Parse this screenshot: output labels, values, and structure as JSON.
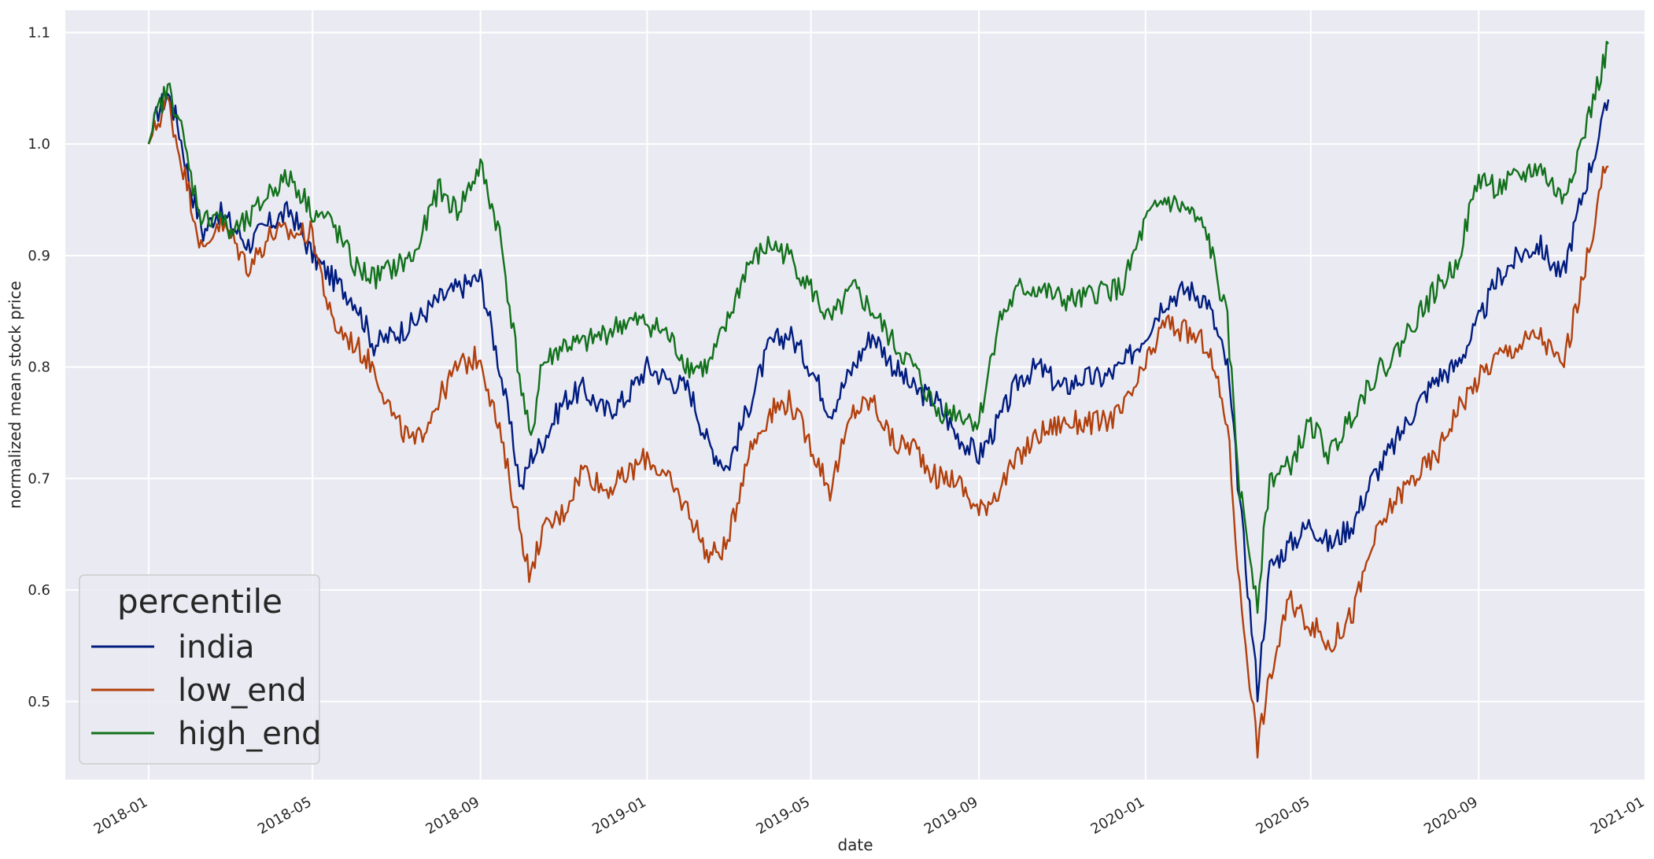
{
  "chart_data": {
    "type": "line",
    "xlabel": "date",
    "ylabel": "normalized mean stock price",
    "xlim": [
      "2017-11-01",
      "2021-01-01"
    ],
    "ylim": [
      0.43,
      1.12
    ],
    "x_ticks": [
      "2018-01",
      "2018-05",
      "2018-09",
      "2019-01",
      "2019-05",
      "2019-09",
      "2020-01",
      "2020-05",
      "2020-09",
      "2021-01"
    ],
    "y_ticks": [
      0.5,
      0.6,
      0.7,
      0.8,
      0.9,
      1.0,
      1.1
    ],
    "y_tick_labels": [
      "0.5",
      "0.6",
      "0.7",
      "0.8",
      "0.9",
      "1.0",
      "1.1"
    ],
    "grid": true,
    "background": "#eaeaf2",
    "legend": {
      "title": "percentile",
      "position": "lower-left"
    },
    "x": [
      "2018-01-01",
      "2018-01-08",
      "2018-01-15",
      "2018-01-22",
      "2018-02-01",
      "2018-02-10",
      "2018-02-20",
      "2018-03-01",
      "2018-03-15",
      "2018-04-01",
      "2018-04-15",
      "2018-05-01",
      "2018-05-15",
      "2018-06-01",
      "2018-06-15",
      "2018-07-01",
      "2018-07-15",
      "2018-08-01",
      "2018-08-15",
      "2018-09-01",
      "2018-09-15",
      "2018-10-01",
      "2018-10-08",
      "2018-10-15",
      "2018-11-01",
      "2018-11-15",
      "2018-12-01",
      "2018-12-15",
      "2019-01-01",
      "2019-01-15",
      "2019-02-01",
      "2019-02-15",
      "2019-03-01",
      "2019-03-15",
      "2019-04-01",
      "2019-04-15",
      "2019-05-01",
      "2019-05-15",
      "2019-06-01",
      "2019-06-15",
      "2019-07-01",
      "2019-07-15",
      "2019-08-01",
      "2019-08-15",
      "2019-09-01",
      "2019-09-15",
      "2019-10-01",
      "2019-10-15",
      "2019-11-01",
      "2019-11-15",
      "2019-12-01",
      "2019-12-15",
      "2020-01-01",
      "2020-01-15",
      "2020-02-01",
      "2020-02-15",
      "2020-03-01",
      "2020-03-10",
      "2020-03-23",
      "2020-04-01",
      "2020-04-15",
      "2020-05-01",
      "2020-05-15",
      "2020-06-01",
      "2020-06-15",
      "2020-07-01",
      "2020-07-15",
      "2020-08-01",
      "2020-08-15",
      "2020-09-01",
      "2020-09-15",
      "2020-10-01",
      "2020-10-15",
      "2020-11-01",
      "2020-11-15",
      "2020-12-01",
      "2020-12-05"
    ],
    "series": [
      {
        "name": "india",
        "color": "#001c7f",
        "values": [
          1.0,
          1.03,
          1.045,
          1.02,
          0.96,
          0.92,
          0.94,
          0.93,
          0.91,
          0.93,
          0.94,
          0.9,
          0.88,
          0.86,
          0.82,
          0.83,
          0.84,
          0.86,
          0.87,
          0.88,
          0.8,
          0.69,
          0.72,
          0.73,
          0.77,
          0.78,
          0.76,
          0.77,
          0.8,
          0.79,
          0.78,
          0.73,
          0.71,
          0.76,
          0.82,
          0.83,
          0.8,
          0.76,
          0.8,
          0.83,
          0.8,
          0.78,
          0.77,
          0.74,
          0.72,
          0.75,
          0.79,
          0.8,
          0.78,
          0.79,
          0.79,
          0.8,
          0.83,
          0.86,
          0.87,
          0.86,
          0.8,
          0.68,
          0.51,
          0.62,
          0.64,
          0.66,
          0.64,
          0.66,
          0.7,
          0.73,
          0.76,
          0.79,
          0.8,
          0.84,
          0.88,
          0.9,
          0.91,
          0.88,
          0.95,
          1.02,
          1.04
        ]
      },
      {
        "name": "low_end",
        "color": "#b1400d",
        "values": [
          1.0,
          1.02,
          1.04,
          1.0,
          0.95,
          0.9,
          0.93,
          0.92,
          0.89,
          0.92,
          0.92,
          0.92,
          0.84,
          0.82,
          0.8,
          0.75,
          0.73,
          0.77,
          0.8,
          0.81,
          0.74,
          0.65,
          0.61,
          0.65,
          0.67,
          0.71,
          0.69,
          0.7,
          0.72,
          0.7,
          0.67,
          0.63,
          0.64,
          0.72,
          0.76,
          0.77,
          0.73,
          0.69,
          0.76,
          0.77,
          0.73,
          0.73,
          0.7,
          0.7,
          0.67,
          0.69,
          0.72,
          0.74,
          0.75,
          0.75,
          0.75,
          0.76,
          0.8,
          0.84,
          0.83,
          0.82,
          0.75,
          0.6,
          0.46,
          0.52,
          0.59,
          0.57,
          0.55,
          0.58,
          0.64,
          0.68,
          0.7,
          0.72,
          0.76,
          0.79,
          0.81,
          0.82,
          0.83,
          0.8,
          0.87,
          0.97,
          0.98
        ]
      },
      {
        "name": "high_end",
        "color": "#12711c",
        "values": [
          1.0,
          1.03,
          1.05,
          1.03,
          0.97,
          0.93,
          0.94,
          0.92,
          0.93,
          0.96,
          0.97,
          0.94,
          0.93,
          0.89,
          0.88,
          0.89,
          0.9,
          0.96,
          0.94,
          0.98,
          0.92,
          0.78,
          0.73,
          0.8,
          0.82,
          0.82,
          0.83,
          0.84,
          0.84,
          0.83,
          0.8,
          0.8,
          0.84,
          0.89,
          0.91,
          0.9,
          0.87,
          0.84,
          0.87,
          0.85,
          0.82,
          0.8,
          0.76,
          0.76,
          0.75,
          0.84,
          0.87,
          0.87,
          0.86,
          0.86,
          0.87,
          0.87,
          0.93,
          0.95,
          0.94,
          0.92,
          0.84,
          0.69,
          0.59,
          0.7,
          0.71,
          0.75,
          0.72,
          0.76,
          0.79,
          0.81,
          0.84,
          0.87,
          0.89,
          0.97,
          0.96,
          0.97,
          0.98,
          0.95,
          1.0,
          1.07,
          1.09
        ]
      }
    ]
  }
}
